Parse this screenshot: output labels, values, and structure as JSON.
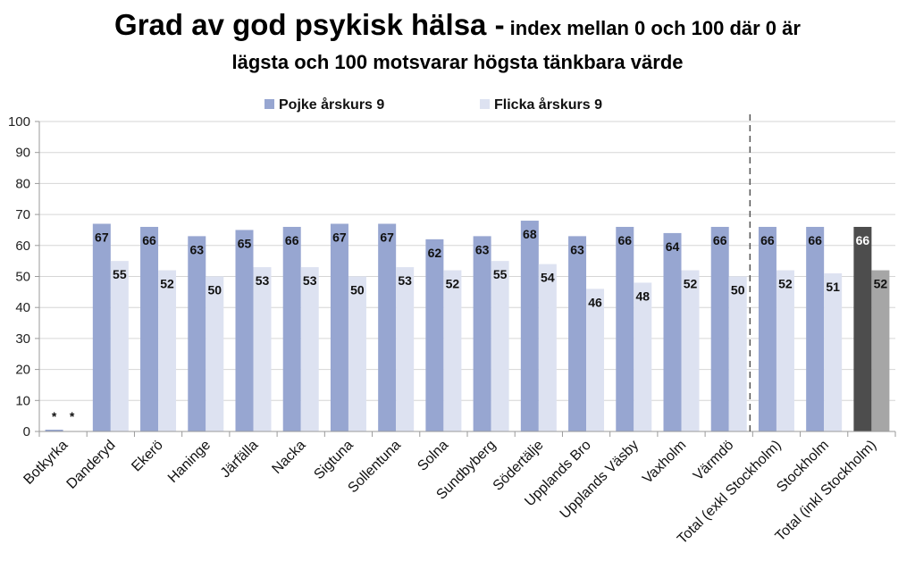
{
  "title": {
    "main": "Grad av god psykisk hälsa -",
    "sub": " index mellan 0 och 100 där 0 är",
    "line2": "lägsta och 100 motsvarar högsta tänkbara värde"
  },
  "chart_data": {
    "type": "bar",
    "categories": [
      "Botkyrka",
      "Danderyd",
      "Ekerö",
      "Haninge",
      "Järfälla",
      "Nacka",
      "Sigtuna",
      "Sollentuna",
      "Solna",
      "Sundbyberg",
      "Södertälje",
      "Upplands Bro",
      "Upplands Väsby",
      "Vaxholm",
      "Värmdö",
      "Total (exkl Stockholm)",
      "Stockholm",
      "Total (inkl Stockholm)"
    ],
    "series": [
      {
        "name": "Pojke årskurs 9",
        "values": [
          0,
          67,
          66,
          63,
          65,
          66,
          67,
          67,
          62,
          63,
          68,
          63,
          66,
          64,
          66,
          66,
          66,
          66
        ],
        "labels": [
          "*",
          "67",
          "66",
          "63",
          "65",
          "66",
          "67",
          "67",
          "62",
          "63",
          "68",
          "63",
          "66",
          "64",
          "66",
          "66",
          "66",
          "66"
        ]
      },
      {
        "name": "Flicka årskurs 9",
        "values": [
          0,
          55,
          52,
          50,
          53,
          53,
          50,
          53,
          52,
          55,
          54,
          46,
          48,
          52,
          50,
          52,
          51,
          52
        ],
        "labels": [
          "*",
          "55",
          "52",
          "50",
          "53",
          "53",
          "50",
          "53",
          "52",
          "55",
          "54",
          "46",
          "48",
          "52",
          "50",
          "52",
          "51",
          "52"
        ]
      }
    ],
    "ylim": [
      0,
      100
    ],
    "yticks": [
      "0",
      "10",
      "20",
      "30",
      "40",
      "50",
      "60",
      "70",
      "80",
      "90",
      "100"
    ],
    "legend_position": "top-center",
    "colors": {
      "pojke": "#97a6d1",
      "flicka": "#dde2f1",
      "pojke_total": "#4d4d4d",
      "flicka_total": "#a6a6a6",
      "grid": "#d6d6d6",
      "axis": "#9a9a9a",
      "separator": "#555555"
    }
  }
}
